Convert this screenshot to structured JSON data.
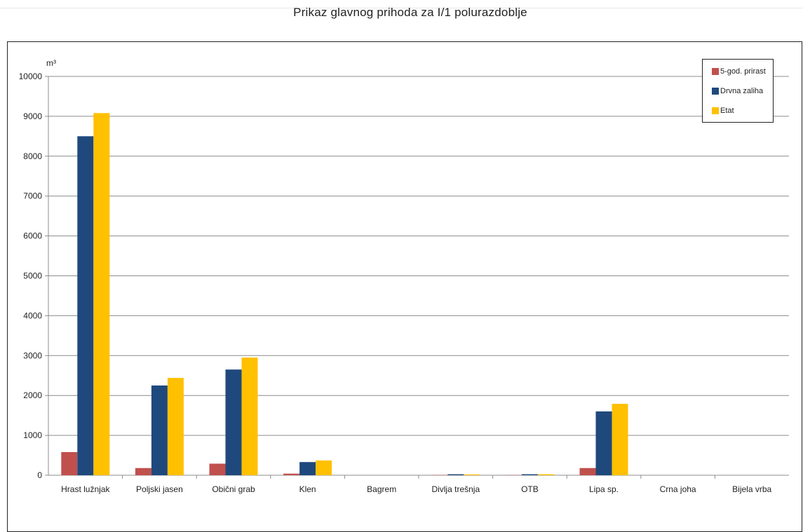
{
  "chart_data": {
    "type": "bar",
    "title": "Prikaz glavnog prihoda za I/1 polurazdoblje",
    "ylabel": "m³",
    "ylim": [
      0,
      10000
    ],
    "yticks": [
      "0",
      "1000",
      "2000",
      "3000",
      "4000",
      "5000",
      "6000",
      "7000",
      "8000",
      "9000",
      "10000"
    ],
    "categories": [
      "Hrast lužnjak",
      "Poljski jasen",
      "Obični grab",
      "Klen",
      "Bagrem",
      "Divlja trešnja",
      "OTB",
      "Lipa sp.",
      "Crna joha",
      "Bijela vrba"
    ],
    "series": [
      {
        "name": "5-god. prirast",
        "color": "#c0504d",
        "values": [
          580,
          180,
          290,
          40,
          0,
          8,
          5,
          180,
          0,
          0
        ]
      },
      {
        "name": "Drvna zaliha",
        "color": "#1f497d",
        "values": [
          8500,
          2250,
          2650,
          330,
          0,
          25,
          25,
          1600,
          0,
          0
        ]
      },
      {
        "name": "Etat",
        "color": "#ffc000",
        "values": [
          9080,
          2440,
          2950,
          370,
          0,
          20,
          25,
          1790,
          0,
          0
        ]
      }
    ],
    "grid": true,
    "legend": "top-right"
  }
}
